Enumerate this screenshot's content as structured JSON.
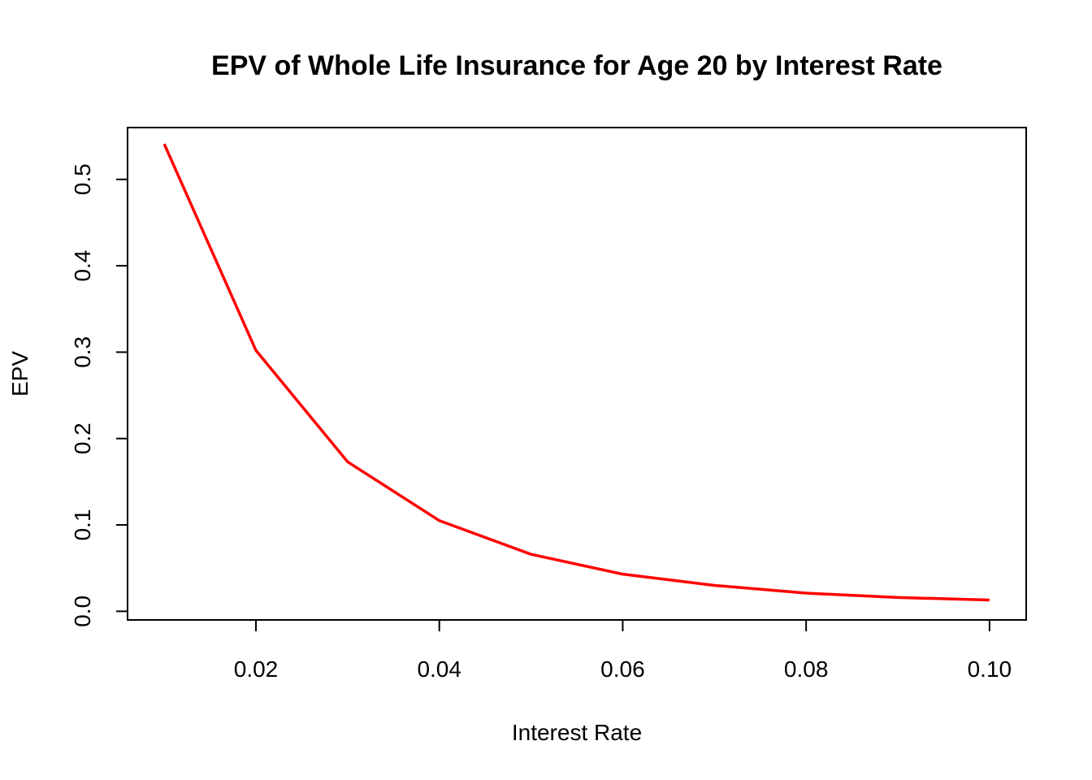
{
  "chart_data": {
    "type": "line",
    "title": "EPV of Whole Life Insurance for Age 20 by Interest Rate",
    "xlabel": "Interest Rate",
    "ylabel": "EPV",
    "xlim": [
      0.006,
      0.104
    ],
    "ylim": [
      -0.01,
      0.56
    ],
    "x_ticks": [
      0.02,
      0.04,
      0.06,
      0.08,
      0.1
    ],
    "x_tick_labels": [
      "0.02",
      "0.04",
      "0.06",
      "0.08",
      "0.10"
    ],
    "y_ticks": [
      0.0,
      0.1,
      0.2,
      0.3,
      0.4,
      0.5
    ],
    "y_tick_labels": [
      "0.0",
      "0.1",
      "0.2",
      "0.3",
      "0.4",
      "0.5"
    ],
    "grid": false,
    "legend": "none",
    "series": [
      {
        "color": "#ff0000",
        "x": [
          0.01,
          0.02,
          0.03,
          0.04,
          0.05,
          0.06,
          0.07,
          0.08,
          0.09,
          0.1
        ],
        "y": [
          0.541,
          0.302,
          0.173,
          0.105,
          0.066,
          0.043,
          0.03,
          0.021,
          0.016,
          0.013
        ]
      }
    ]
  }
}
